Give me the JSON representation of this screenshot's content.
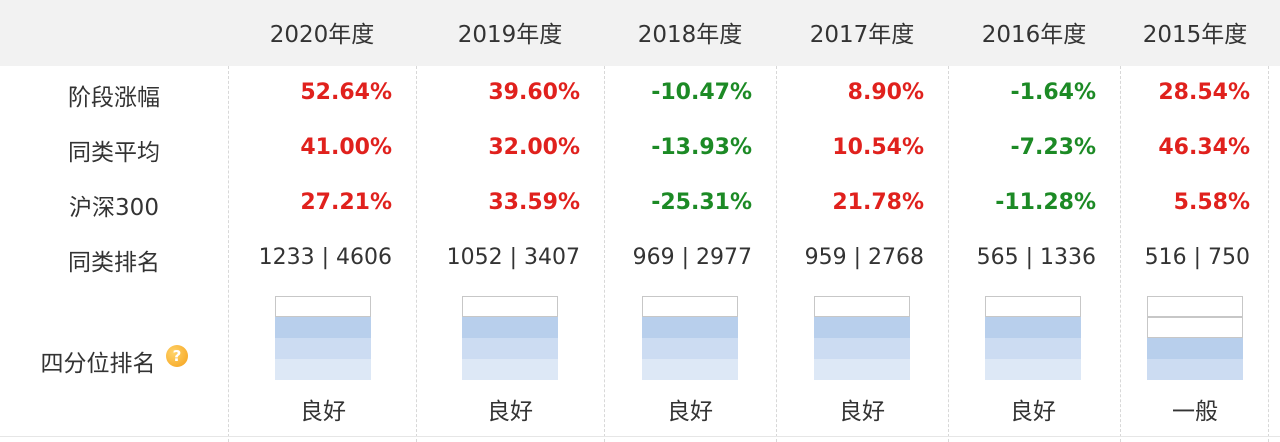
{
  "columns": [
    "2020年度",
    "2019年度",
    "2018年度",
    "2017年度",
    "2016年度",
    "2015年度"
  ],
  "rows": {
    "stage_return": {
      "label": "阶段涨幅",
      "values": [
        "52.64%",
        "39.60%",
        "-10.47%",
        "8.90%",
        "-1.64%",
        "28.54%"
      ]
    },
    "peer_average": {
      "label": "同类平均",
      "values": [
        "41.00%",
        "32.00%",
        "-13.93%",
        "10.54%",
        "-7.23%",
        "46.34%"
      ]
    },
    "csi300": {
      "label": "沪深300",
      "values": [
        "27.21%",
        "33.59%",
        "-25.31%",
        "21.78%",
        "-11.28%",
        "5.58%"
      ]
    },
    "peer_rank": {
      "label": "同类排名",
      "values": [
        "1233 | 4606",
        "1052 | 3407",
        "969 | 2977",
        "959 | 2768",
        "565 | 1336",
        "516 | 750"
      ]
    },
    "quartile": {
      "label": "四分位排名",
      "levels": [
        3,
        3,
        3,
        3,
        3,
        2
      ],
      "ratings": [
        "良好",
        "良好",
        "良好",
        "良好",
        "良好",
        "一般"
      ]
    }
  },
  "icons": {
    "quartile_hint": "question-mark-icon"
  },
  "colors": {
    "positive": "#e0211d",
    "negative": "#1c8a25",
    "quartile_fill": "#b8cfec"
  }
}
